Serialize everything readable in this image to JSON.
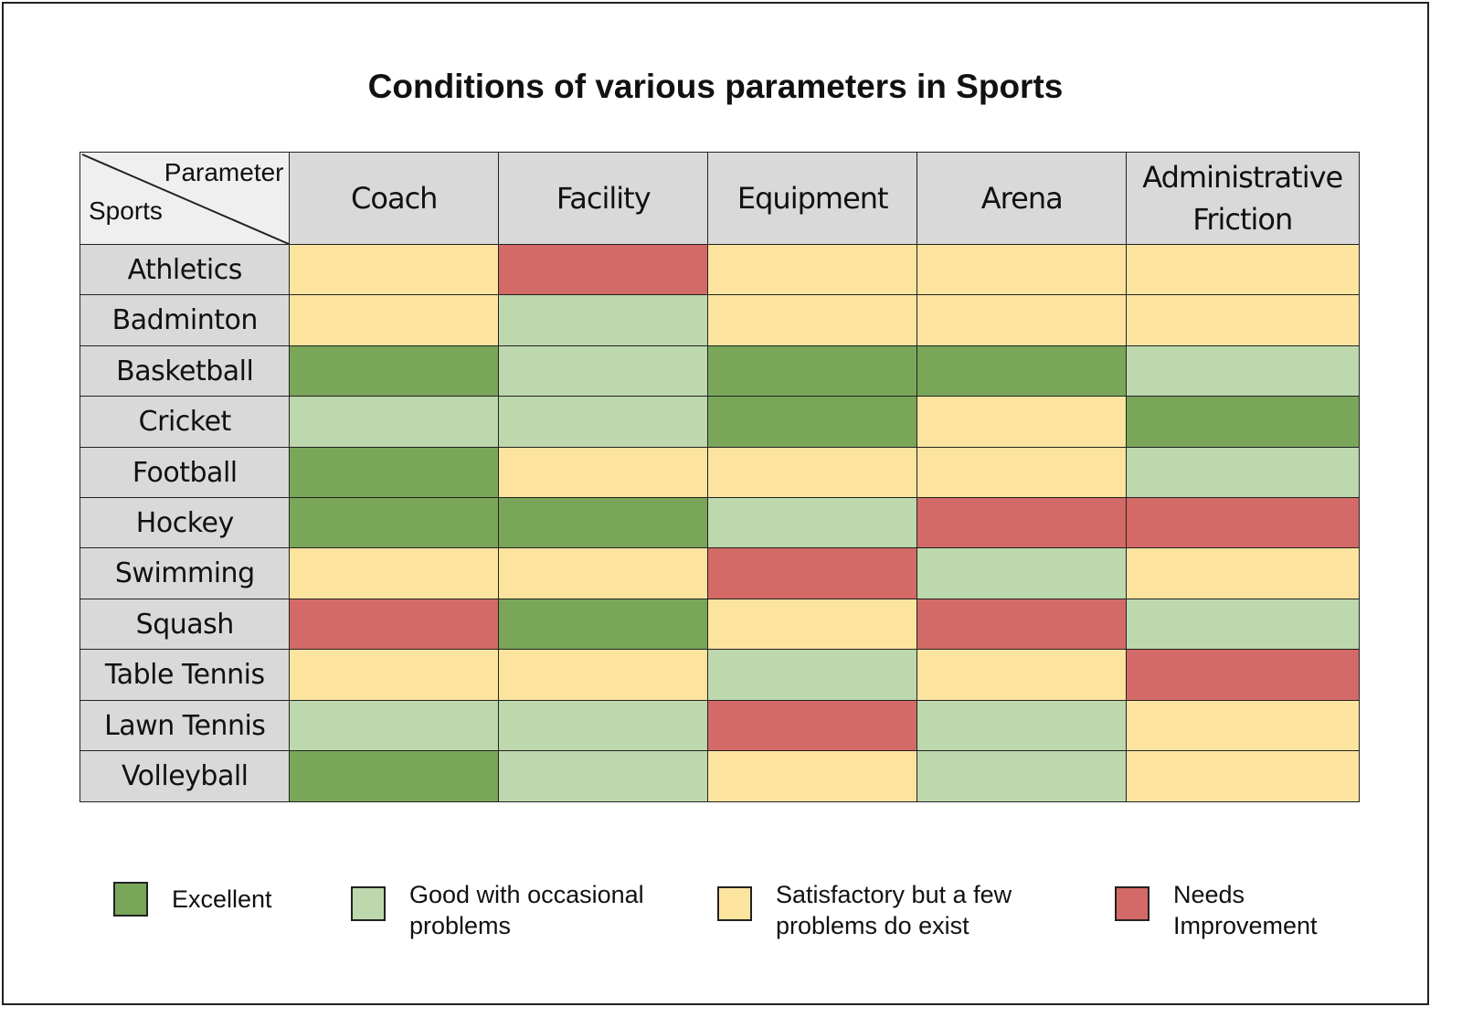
{
  "chart_data": {
    "type": "heatmap",
    "title": "Conditions of various parameters in Sports",
    "corner_labels": {
      "columns": "Parameter",
      "rows": "Sports"
    },
    "columns": [
      "Coach",
      "Facility",
      "Equipment",
      "Arena",
      "Administrative Friction"
    ],
    "rows": [
      "Athletics",
      "Badminton",
      "Basketball",
      "Cricket",
      "Football",
      "Hockey",
      "Swimming",
      "Squash",
      "Table Tennis",
      "Lawn Tennis",
      "Volleyball"
    ],
    "values": [
      [
        "Satisfactory",
        "Needs Improvement",
        "Satisfactory",
        "Satisfactory",
        "Satisfactory"
      ],
      [
        "Satisfactory",
        "Good",
        "Satisfactory",
        "Satisfactory",
        "Satisfactory"
      ],
      [
        "Excellent",
        "Good",
        "Excellent",
        "Excellent",
        "Good"
      ],
      [
        "Good",
        "Good",
        "Excellent",
        "Satisfactory",
        "Excellent"
      ],
      [
        "Excellent",
        "Satisfactory",
        "Satisfactory",
        "Satisfactory",
        "Good"
      ],
      [
        "Excellent",
        "Excellent",
        "Good",
        "Needs Improvement",
        "Needs Improvement"
      ],
      [
        "Satisfactory",
        "Satisfactory",
        "Needs Improvement",
        "Good",
        "Satisfactory"
      ],
      [
        "Needs Improvement",
        "Excellent",
        "Satisfactory",
        "Needs Improvement",
        "Good"
      ],
      [
        "Satisfactory",
        "Satisfactory",
        "Good",
        "Satisfactory",
        "Needs Improvement"
      ],
      [
        "Good",
        "Good",
        "Needs Improvement",
        "Good",
        "Satisfactory"
      ],
      [
        "Excellent",
        "Good",
        "Satisfactory",
        "Good",
        "Satisfactory"
      ]
    ],
    "legend": [
      {
        "key": "Excellent",
        "label": "Excellent",
        "color": "#7aa65a"
      },
      {
        "key": "Good",
        "label": "Good with occasional problems",
        "color": "#bdd8ad"
      },
      {
        "key": "Satisfactory",
        "label": "Satisfactory but a few problems do exist",
        "color": "#fce49f"
      },
      {
        "key": "Needs Improvement",
        "label": "Needs Improvement",
        "color": "#d46a67"
      }
    ],
    "legend_placement": "bottom"
  }
}
